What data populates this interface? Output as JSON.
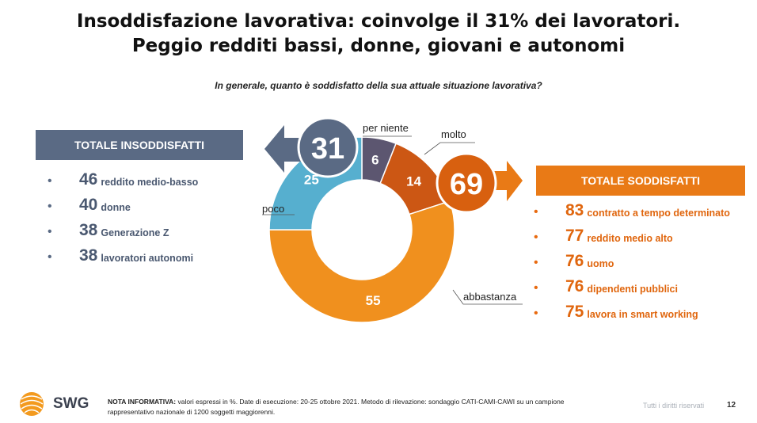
{
  "title": {
    "line1": "Insoddisfazione lavorativa: coinvolge il 31% dei lavoratori.",
    "line2": "Peggio redditi bassi, donne, giovani e autonomi"
  },
  "question": "In generale, quanto è soddisfatto della sua attuale situazione lavorativa?",
  "left_panel": {
    "header": "TOTALE INSODDISFATTI",
    "total": "31",
    "items": [
      {
        "value": "46",
        "label": "reddito medio-basso"
      },
      {
        "value": "40",
        "label": "donne"
      },
      {
        "value": "38",
        "label": "Generazione Z"
      },
      {
        "value": "38",
        "label": "lavoratori autonomi"
      }
    ]
  },
  "right_panel": {
    "header": "TOTALE SODDISFATTI",
    "total": "69",
    "items": [
      {
        "value": "83",
        "label": "contratto a tempo determinato"
      },
      {
        "value": "77",
        "label": "reddito medio alto"
      },
      {
        "value": "76",
        "label": "uomo"
      },
      {
        "value": "76",
        "label": "dipendenti pubblici"
      },
      {
        "value": "75",
        "label": "lavora in smart working"
      }
    ]
  },
  "chart_data": {
    "type": "pie",
    "variant": "donut",
    "title": "In generale, quanto è soddisfatto della sua attuale situazione lavorativa?",
    "unit": "%",
    "categories": [
      "per niente",
      "molto",
      "abbastanza",
      "poco"
    ],
    "values": [
      6,
      14,
      55,
      25
    ],
    "colors": [
      "#5c5670",
      "#cc5714",
      "#f0901e",
      "#56afcf"
    ],
    "totals": [
      {
        "name": "TOTALE INSODDISFATTI",
        "value": 31,
        "color": "#5a6a84"
      },
      {
        "name": "TOTALE SODDISFATTI",
        "value": 69,
        "color": "#d8600f"
      }
    ]
  },
  "colors": {
    "insoddisfatti": "#5a6a84",
    "soddisfatti": "#e97a16"
  },
  "footer": {
    "logo": "SWG",
    "note_label": "NOTA INFORMATIVA:",
    "note_text": "valori espressi in %. Date di esecuzione: 20-25 ottobre 2021. Metodo di rilevazione: sondaggio CATI-CAMI-CAWI su un campione rappresentativo nazionale di 1200 soggetti maggiorenni.",
    "rights": "Tutti i diritti riservati",
    "page": "12"
  }
}
